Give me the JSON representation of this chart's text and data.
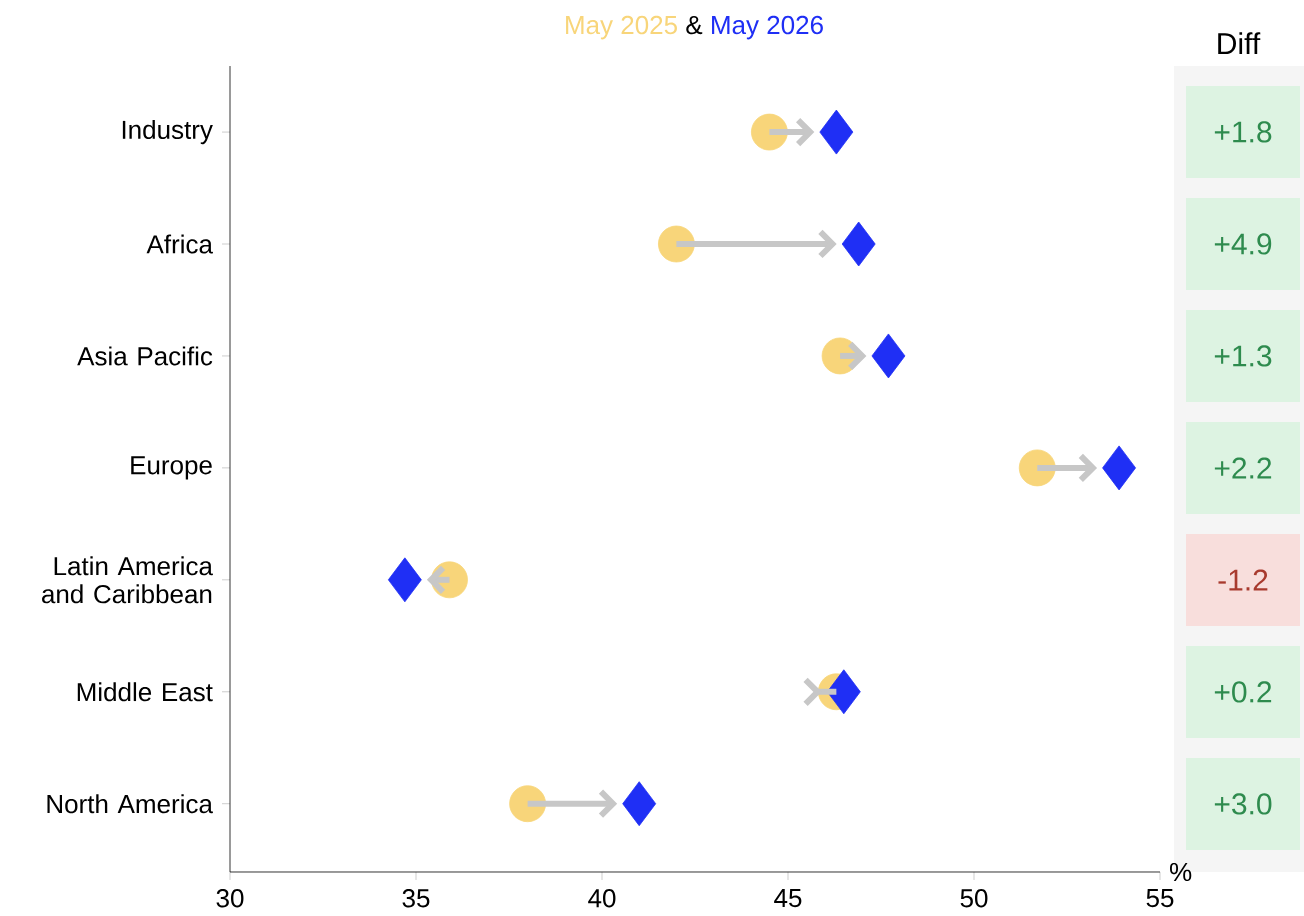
{
  "chart_data": {
    "type": "scatter",
    "subtitle": "&",
    "categories": [
      "Industry",
      "Africa",
      "Asia Pacific",
      "Europe",
      "Latin America and Caribbean",
      "Middle East",
      "North America"
    ],
    "series": [
      {
        "name": "May 2025",
        "color": "#f8d57a",
        "marker": "circle",
        "values": [
          44.5,
          42.0,
          46.4,
          51.7,
          35.9,
          46.3,
          38.0
        ]
      },
      {
        "name": "May 2026",
        "color": "#1f2ff5",
        "marker": "diamond",
        "values": [
          46.3,
          46.9,
          47.7,
          53.9,
          34.7,
          46.5,
          41.0
        ]
      }
    ],
    "orientation": "horizontal",
    "xlim": [
      30,
      55
    ],
    "xticks": [
      30,
      35,
      40,
      45,
      50,
      55
    ],
    "xlabel": "%",
    "legend": false,
    "grid": false,
    "annotations": [
      "Diff",
      "+1.8",
      "+4.9",
      "+1.3",
      "+2.2",
      "-1.2",
      "+0.2",
      "+3.0"
    ]
  }
}
